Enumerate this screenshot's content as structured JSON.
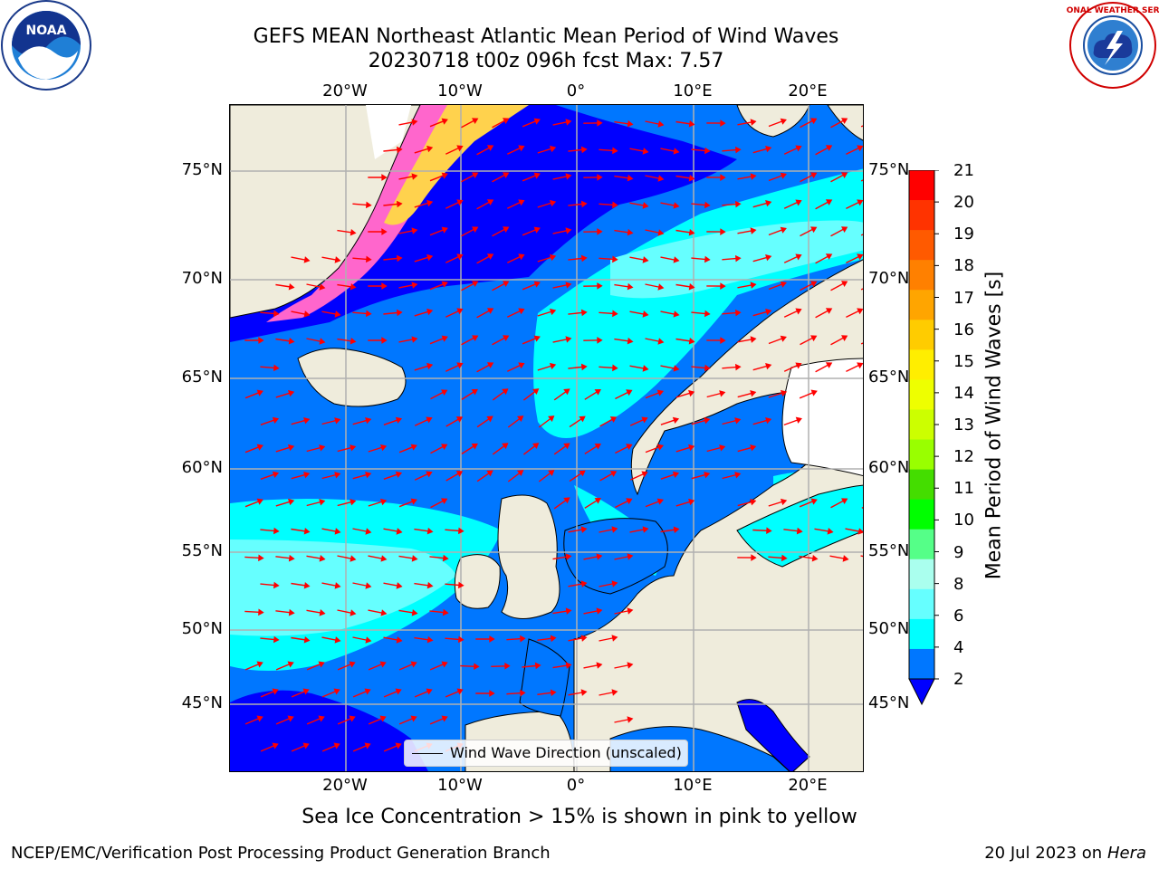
{
  "header": {
    "title_line1": "GEFS MEAN Northeast Atlantic Mean Period of Wind Waves",
    "title_line2": "20230718 t00z 096h fcst   Max: 7.57"
  },
  "logos": {
    "left": "NOAA",
    "right": "NATIONAL WEATHER SERVICE"
  },
  "map": {
    "lon_ticks": [
      "20°W",
      "10°W",
      "0°",
      "10°E",
      "20°E"
    ],
    "lat_ticks": [
      "75°N",
      "70°N",
      "65°N",
      "60°N",
      "55°N",
      "50°N",
      "45°N"
    ],
    "legend": "Wind Wave Direction (unscaled)",
    "colors": {
      "land": "#efecdc",
      "ice_pink": "#ff66cc",
      "ice_yellow": "#ffd24d",
      "arrow": "#ff0000",
      "grid": "#b0b0b0"
    }
  },
  "colorbar": {
    "label": "Mean Period of Wind Waves [s]",
    "ticks": [
      "21",
      "20",
      "19",
      "18",
      "17",
      "16",
      "15",
      "14",
      "13",
      "12",
      "11",
      "10",
      "9",
      "8",
      "6",
      "4",
      "2"
    ],
    "colors": [
      "#ff0000",
      "#ff3300",
      "#ff5a00",
      "#ff8000",
      "#ffa500",
      "#ffcc00",
      "#ffee00",
      "#eeff00",
      "#ccff00",
      "#99ff00",
      "#44dd00",
      "#00ff00",
      "#55ff88",
      "#aaffee",
      "#66ffff",
      "#00ffff",
      "#0077ff"
    ],
    "under_color": "#0000ff"
  },
  "subtitle": "Sea Ice Concentration > 15% is shown in pink to yellow",
  "footer": {
    "left": "NCEP/EMC/Verification Post Processing Product Generation Branch",
    "date": "20 Jul 2023 on ",
    "host": "Hera"
  }
}
